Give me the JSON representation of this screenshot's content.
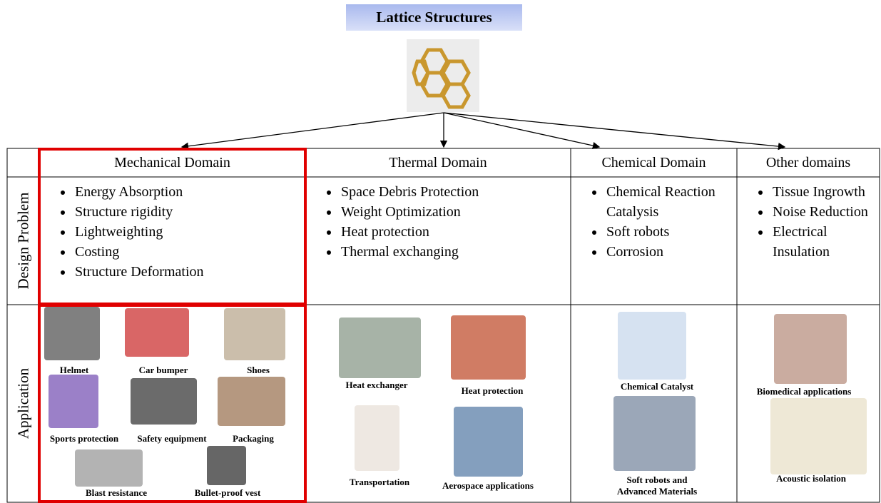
{
  "title": "Lattice Structures",
  "columns": [
    "Mechanical Domain",
    "Thermal Domain",
    "Chemical Domain",
    "Other domains"
  ],
  "row_labels": [
    "Design Problem",
    "Application"
  ],
  "design_problems": [
    [
      "Energy Absorption",
      "Structure rigidity",
      "Lightweighting",
      "Costing",
      "Structure Deformation"
    ],
    [
      "Space Debris Protection",
      "Weight Optimization",
      "Heat protection",
      "Thermal exchanging"
    ],
    [
      "Chemical Reaction Catalysis",
      "Soft robots",
      "Corrosion"
    ],
    [
      "Tissue Ingrowth",
      "Noise Reduction",
      "Electrical Insulation"
    ]
  ],
  "applications": [
    [
      "Helmet",
      "Car bumper",
      "Shoes",
      "Sports protection",
      "Safety equipment",
      "Packaging",
      "Blast resistance",
      "Bullet-proof vest"
    ],
    [
      "Heat exchanger",
      "Heat protection",
      "Transportation",
      "Aerospace applications"
    ],
    [
      "Chemical Catalyst",
      "Soft robots and Advanced Materials"
    ],
    [
      "Biomedical applications",
      "Acoustic isolation"
    ]
  ]
}
